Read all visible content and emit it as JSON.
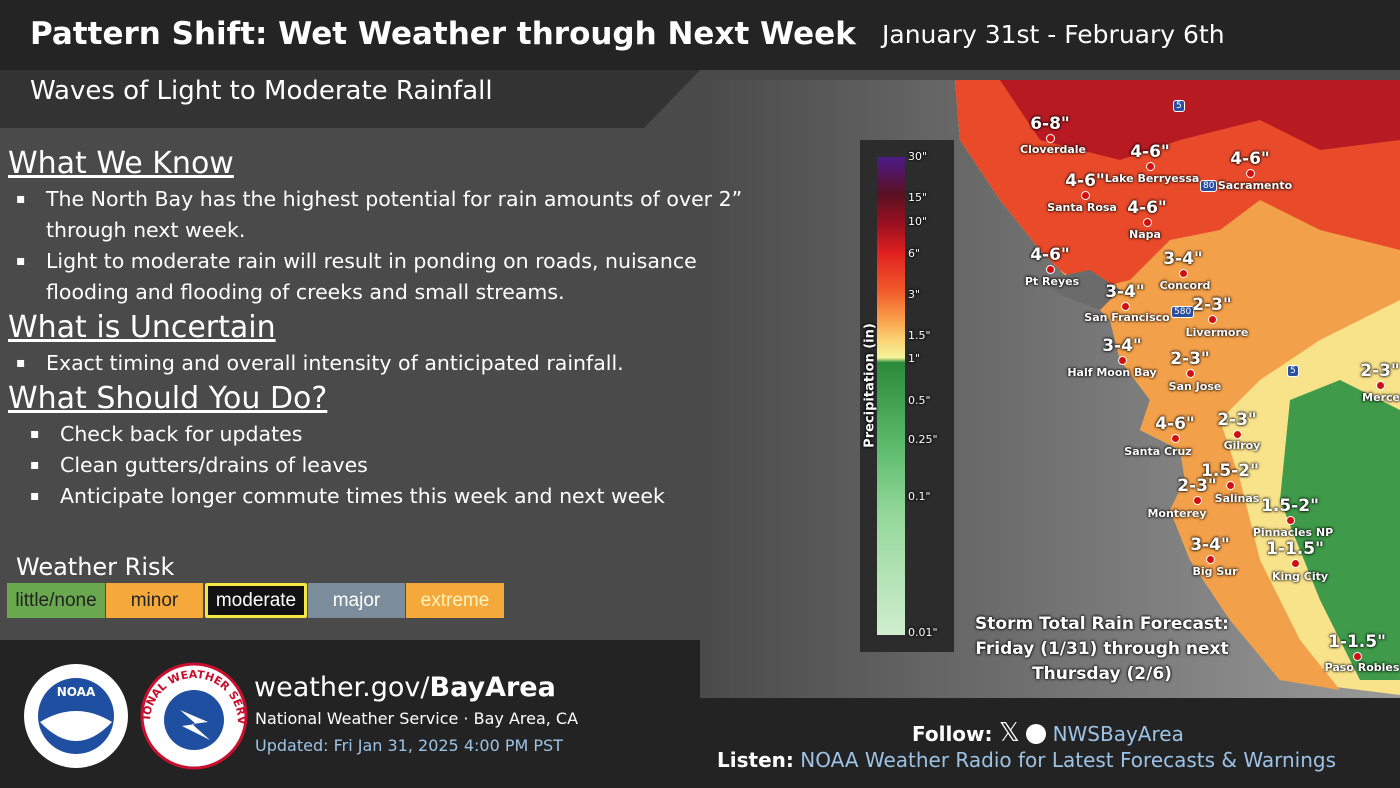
{
  "header": {
    "title": "Pattern Shift: Wet Weather through Next Week",
    "date_range": "January 31st - February 6th",
    "subtitle": "Waves of Light to Moderate Rainfall"
  },
  "sections": [
    {
      "heading": "What We Know",
      "bullets": [
        "The North Bay has the highest potential for rain amounts of over 2” through next week.",
        "Light to moderate rain will result in ponding on roads, nuisance flooding and flooding of creeks and small streams."
      ]
    },
    {
      "heading": "What is Uncertain",
      "bullets": [
        "Exact timing and overall intensity of anticipated rainfall."
      ]
    },
    {
      "heading": "What Should You Do?",
      "bullets": [
        "Check back for updates",
        "Clean gutters/drains of leaves",
        "Anticipate longer commute times this week and next week"
      ]
    }
  ],
  "weather_risk": {
    "title": "Weather Risk",
    "levels": [
      {
        "label": "little/none",
        "color": "#6aa84f",
        "selected": false
      },
      {
        "label": "minor",
        "color": "#f6a93b",
        "selected": false
      },
      {
        "label": "moderate",
        "color": "#111111",
        "selected": true
      },
      {
        "label": "major",
        "color": "#7b8d9b",
        "selected": false
      },
      {
        "label": "extreme",
        "color": "#f6a93b",
        "selected": false
      }
    ]
  },
  "map": {
    "legend": {
      "title": "Precipitation (in)",
      "ticks": [
        "30\"",
        "15\"",
        "10\"",
        "6\"",
        "3\"",
        "1.5\"",
        "1\"",
        "0.5\"",
        "0.25\"",
        "0.1\"",
        "0.01\""
      ]
    },
    "highways": [
      "5",
      "80",
      "580",
      "5"
    ],
    "labels": [
      {
        "amount": "6-8\"",
        "place": "Cloverdale"
      },
      {
        "amount": "4-6\"",
        "place": "Lake Berryessa"
      },
      {
        "amount": "4-6\"",
        "place": "Sacramento"
      },
      {
        "amount": "4-6\"",
        "place": "Santa Rosa"
      },
      {
        "amount": "4-6\"",
        "place": "Napa"
      },
      {
        "amount": "4-6\"",
        "place": "Pt Reyes"
      },
      {
        "amount": "3-4\"",
        "place": "Concord"
      },
      {
        "amount": "3-4\"",
        "place": "San Francisco"
      },
      {
        "amount": "2-3\"",
        "place": "Livermore"
      },
      {
        "amount": "3-4\"",
        "place": "Half Moon Bay"
      },
      {
        "amount": "2-3\"",
        "place": "San Jose"
      },
      {
        "amount": "2-3\"",
        "place": "Merced"
      },
      {
        "amount": "4-6\"",
        "place": "Santa Cruz"
      },
      {
        "amount": "2-3\"",
        "place": "Gilroy"
      },
      {
        "amount": "1.5-2\"",
        "place": "Salinas"
      },
      {
        "amount": "2-3\"",
        "place": "Monterey"
      },
      {
        "amount": "1.5-2\"",
        "place": "Pinnacles NP"
      },
      {
        "amount": "3-4\"",
        "place": "Big Sur"
      },
      {
        "amount": "1-1.5\"",
        "place": "King City"
      },
      {
        "amount": "1-1.5\"",
        "place": "Paso Robles"
      }
    ],
    "caption": [
      "Storm Total Rain Forecast:",
      "Friday (1/31)  through next",
      "Thursday (2/6)"
    ]
  },
  "footer": {
    "noaa_logo": "NOAA",
    "nws_logo": "NATIONAL WEATHER SERVICE",
    "website_prefix": "weather.gov/",
    "website_bold": "BayArea",
    "office": "National Weather Service · Bay Area, CA",
    "updated": "Updated: Fri Jan 31, 2025 4:00 PM PST",
    "follow_label": "Follow:",
    "handle": "NWSBayArea",
    "listen_label": "Listen:",
    "listen_text": "NOAA Weather Radio for Latest Forecasts & Warnings"
  }
}
